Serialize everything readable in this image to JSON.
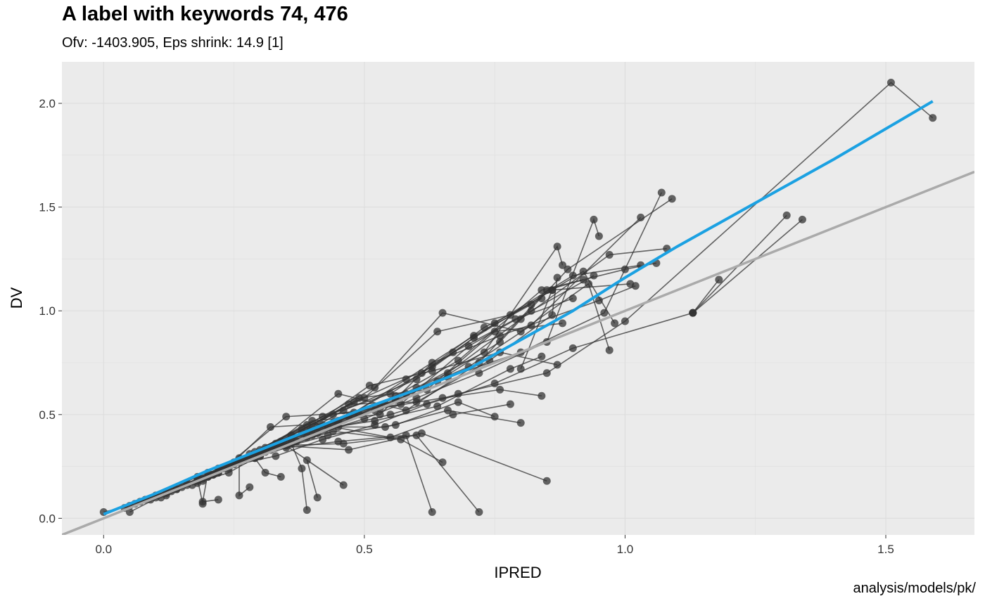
{
  "chart_data": {
    "type": "scatter",
    "title": "A label with keywords 74, 476",
    "subtitle": "Ofv: -1403.905, Eps shrink: 14.9 [1]",
    "caption": "analysis/models/pk/",
    "xlabel": "IPRED",
    "ylabel": "DV",
    "xlim": [
      -0.08,
      1.67
    ],
    "ylim": [
      -0.08,
      2.2
    ],
    "xticks": [
      0.0,
      0.5,
      1.0,
      1.5
    ],
    "xtick_labels": [
      "0.0",
      "0.5",
      "1.0",
      "1.5"
    ],
    "yticks": [
      0.0,
      0.5,
      1.0,
      1.5,
      2.0
    ],
    "ytick_labels": [
      "0.0",
      "0.5",
      "1.0",
      "1.5",
      "2.0"
    ],
    "grid": true,
    "legend": "none",
    "colors": {
      "panel": "#EBEBEB",
      "grid": "#DEDEDE",
      "points": "#333333",
      "smooth": "#1BA1E2",
      "identity": "#AAAAAA"
    },
    "identity_line": {
      "slope": 1,
      "intercept": 0
    },
    "smooth_line": [
      [
        0.0,
        0.02
      ],
      [
        0.1,
        0.12
      ],
      [
        0.2,
        0.23
      ],
      [
        0.3,
        0.33
      ],
      [
        0.4,
        0.43
      ],
      [
        0.5,
        0.53
      ],
      [
        0.6,
        0.62
      ],
      [
        0.7,
        0.72
      ],
      [
        0.8,
        0.86
      ],
      [
        0.9,
        1.0
      ],
      [
        1.0,
        1.16
      ],
      [
        1.1,
        1.31
      ],
      [
        1.2,
        1.45
      ],
      [
        1.3,
        1.59
      ],
      [
        1.4,
        1.73
      ],
      [
        1.59,
        2.01
      ]
    ],
    "series": [
      {
        "points": [
          [
            0.0,
            0.03
          ],
          [
            0.05,
            0.06
          ],
          [
            0.1,
            0.11
          ],
          [
            0.18,
            0.2
          ],
          [
            0.25,
            0.26
          ],
          [
            0.35,
            0.34
          ],
          [
            0.45,
            0.44
          ],
          [
            0.55,
            0.5
          ],
          [
            0.68,
            0.6
          ],
          [
            0.85,
            0.7
          ],
          [
            1.0,
            0.95
          ],
          [
            1.51,
            2.1
          ],
          [
            1.59,
            1.93
          ]
        ]
      },
      {
        "points": [
          [
            0.05,
            0.03
          ],
          [
            0.12,
            0.12
          ],
          [
            0.22,
            0.24
          ],
          [
            0.33,
            0.3
          ],
          [
            0.42,
            0.38
          ],
          [
            0.52,
            0.45
          ],
          [
            0.62,
            0.55
          ],
          [
            0.75,
            0.65
          ],
          [
            0.9,
            0.82
          ],
          [
            1.13,
            0.99
          ],
          [
            1.31,
            1.46
          ]
        ]
      },
      {
        "points": [
          [
            0.04,
            0.05
          ],
          [
            0.11,
            0.1
          ],
          [
            0.2,
            0.2
          ],
          [
            0.3,
            0.3
          ],
          [
            0.4,
            0.4
          ],
          [
            0.5,
            0.48
          ],
          [
            0.6,
            0.58
          ],
          [
            0.72,
            0.7
          ],
          [
            0.85,
            0.85
          ],
          [
            0.94,
            1.44
          ],
          [
            0.95,
            1.36
          ]
        ]
      },
      {
        "points": [
          [
            0.06,
            0.07
          ],
          [
            0.14,
            0.14
          ],
          [
            0.24,
            0.22
          ],
          [
            0.34,
            0.36
          ],
          [
            0.44,
            0.46
          ],
          [
            0.56,
            0.57
          ],
          [
            0.66,
            0.68
          ],
          [
            0.8,
            0.8
          ],
          [
            0.96,
            0.99
          ],
          [
            1.07,
            1.57
          ]
        ]
      },
      {
        "points": [
          [
            0.07,
            0.08
          ],
          [
            0.16,
            0.17
          ],
          [
            0.27,
            0.28
          ],
          [
            0.37,
            0.37
          ],
          [
            0.47,
            0.49
          ],
          [
            0.58,
            0.6
          ],
          [
            0.7,
            0.73
          ],
          [
            0.82,
            0.93
          ],
          [
            1.03,
            1.45
          ]
        ]
      },
      {
        "points": [
          [
            0.08,
            0.09
          ],
          [
            0.18,
            0.18
          ],
          [
            0.29,
            0.29
          ],
          [
            0.39,
            0.39
          ],
          [
            0.49,
            0.5
          ],
          [
            0.6,
            0.63
          ],
          [
            0.73,
            0.8
          ],
          [
            0.87,
            1.31
          ],
          [
            0.88,
            1.22
          ]
        ]
      },
      {
        "points": [
          [
            0.09,
            0.09
          ],
          [
            0.19,
            0.19
          ],
          [
            0.3,
            0.3
          ],
          [
            0.41,
            0.41
          ],
          [
            0.52,
            0.52
          ],
          [
            0.64,
            0.66
          ],
          [
            0.76,
            0.85
          ],
          [
            0.89,
            1.2
          ],
          [
            1.09,
            1.54
          ]
        ]
      },
      {
        "points": [
          [
            0.1,
            0.1
          ],
          [
            0.21,
            0.21
          ],
          [
            0.32,
            0.33
          ],
          [
            0.43,
            0.44
          ],
          [
            0.54,
            0.55
          ],
          [
            0.66,
            0.7
          ],
          [
            0.8,
            0.96
          ],
          [
            0.97,
            1.27
          ],
          [
            1.08,
            1.3
          ]
        ]
      },
      {
        "points": [
          [
            0.12,
            0.11
          ],
          [
            0.22,
            0.22
          ],
          [
            0.33,
            0.34
          ],
          [
            0.45,
            0.47
          ],
          [
            0.56,
            0.59
          ],
          [
            0.68,
            0.76
          ],
          [
            0.84,
            1.1
          ],
          [
            1.0,
            1.2
          ],
          [
            1.06,
            1.23
          ]
        ]
      },
      {
        "points": [
          [
            0.13,
            0.13
          ],
          [
            0.24,
            0.24
          ],
          [
            0.35,
            0.36
          ],
          [
            0.46,
            0.52
          ],
          [
            0.6,
            0.67
          ],
          [
            0.71,
            0.87
          ],
          [
            0.86,
            1.1
          ],
          [
            1.01,
            1.13
          ]
        ]
      },
      {
        "points": [
          [
            0.14,
            0.14
          ],
          [
            0.25,
            0.27
          ],
          [
            0.36,
            0.4
          ],
          [
            0.48,
            0.56
          ],
          [
            0.63,
            0.73
          ],
          [
            0.75,
            0.94
          ],
          [
            0.9,
            1.17
          ],
          [
            1.03,
            1.22
          ]
        ]
      },
      {
        "points": [
          [
            0.15,
            0.15
          ],
          [
            0.26,
            0.29
          ],
          [
            0.38,
            0.43
          ],
          [
            0.5,
            0.58
          ],
          [
            0.64,
            0.9
          ],
          [
            0.78,
            0.98
          ],
          [
            0.92,
            1.19
          ],
          [
            0.98,
            0.94
          ]
        ]
      },
      {
        "points": [
          [
            0.16,
            0.16
          ],
          [
            0.28,
            0.31
          ],
          [
            0.39,
            0.45
          ],
          [
            0.52,
            0.63
          ],
          [
            0.65,
            0.99
          ],
          [
            0.8,
            0.9
          ],
          [
            0.93,
            1.13
          ],
          [
            0.97,
            0.81
          ]
        ]
      },
      {
        "points": [
          [
            0.17,
            0.16
          ],
          [
            0.29,
            0.32
          ],
          [
            0.4,
            0.47
          ],
          [
            0.53,
            0.5
          ],
          [
            0.63,
            0.75
          ],
          [
            0.76,
            0.88
          ],
          [
            0.95,
            1.05
          ],
          [
            1.02,
            1.12
          ]
        ]
      },
      {
        "points": [
          [
            0.18,
            0.17
          ],
          [
            0.3,
            0.33
          ],
          [
            0.42,
            0.49
          ],
          [
            0.55,
            0.6
          ],
          [
            0.67,
            0.8
          ],
          [
            0.79,
            0.96
          ],
          [
            0.9,
            1.06
          ]
        ]
      },
      {
        "points": [
          [
            0.19,
            0.18
          ],
          [
            0.31,
            0.34
          ],
          [
            0.44,
            0.5
          ],
          [
            0.57,
            0.55
          ],
          [
            0.7,
            0.83
          ],
          [
            0.82,
            1.0
          ],
          [
            0.94,
            1.17
          ]
        ]
      },
      {
        "points": [
          [
            0.2,
            0.2
          ],
          [
            0.33,
            0.36
          ],
          [
            0.45,
            0.6
          ],
          [
            0.58,
            0.52
          ],
          [
            0.72,
            0.75
          ],
          [
            0.85,
            1.1
          ],
          [
            0.92,
            1.15
          ]
        ]
      },
      {
        "points": [
          [
            0.21,
            0.21
          ],
          [
            0.34,
            0.37
          ],
          [
            0.47,
            0.55
          ],
          [
            0.6,
            0.56
          ],
          [
            0.74,
            0.76
          ],
          [
            0.86,
            0.98
          ],
          [
            0.87,
            1.16
          ]
        ]
      },
      {
        "points": [
          [
            0.22,
            0.22
          ],
          [
            0.35,
            0.49
          ],
          [
            0.48,
            0.51
          ],
          [
            0.61,
            0.7
          ],
          [
            0.73,
            0.92
          ],
          [
            0.84,
            1.06
          ]
        ]
      },
      {
        "points": [
          [
            0.23,
            0.24
          ],
          [
            0.36,
            0.38
          ],
          [
            0.49,
            0.58
          ],
          [
            0.62,
            0.62
          ],
          [
            0.75,
            0.9
          ],
          [
            0.88,
            0.94
          ]
        ]
      },
      {
        "points": [
          [
            0.24,
            0.25
          ],
          [
            0.32,
            0.44
          ],
          [
            0.45,
            0.46
          ],
          [
            0.58,
            0.67
          ],
          [
            0.71,
            0.88
          ],
          [
            0.82,
            1.03
          ]
        ]
      },
      {
        "points": [
          [
            0.25,
            0.26
          ],
          [
            0.38,
            0.41
          ],
          [
            0.51,
            0.64
          ],
          [
            0.63,
            0.71
          ],
          [
            0.76,
            0.8
          ],
          [
            0.87,
            0.74
          ]
        ]
      },
      {
        "points": [
          [
            0.26,
            0.27
          ],
          [
            0.39,
            0.42
          ],
          [
            0.52,
            0.47
          ],
          [
            0.64,
            0.54
          ],
          [
            0.78,
            0.72
          ],
          [
            0.84,
            0.78
          ]
        ]
      },
      {
        "points": [
          [
            0.27,
            0.28
          ],
          [
            0.4,
            0.43
          ],
          [
            0.53,
            0.53
          ],
          [
            0.65,
            0.58
          ],
          [
            0.76,
            0.62
          ],
          [
            0.84,
            0.59
          ]
        ]
      },
      {
        "points": [
          [
            0.28,
            0.29
          ],
          [
            0.41,
            0.44
          ],
          [
            0.54,
            0.44
          ],
          [
            0.66,
            0.52
          ],
          [
            0.8,
            0.46
          ]
        ]
      },
      {
        "points": [
          [
            0.29,
            0.3
          ],
          [
            0.42,
            0.45
          ],
          [
            0.55,
            0.39
          ],
          [
            0.67,
            0.5
          ],
          [
            0.78,
            0.55
          ]
        ]
      },
      {
        "points": [
          [
            0.3,
            0.31
          ],
          [
            0.43,
            0.4
          ],
          [
            0.56,
            0.45
          ],
          [
            0.68,
            0.56
          ],
          [
            0.75,
            0.49
          ]
        ]
      },
      {
        "points": [
          [
            0.31,
            0.32
          ],
          [
            0.44,
            0.42
          ],
          [
            0.57,
            0.38
          ],
          [
            0.65,
            0.27
          ]
        ]
      },
      {
        "points": [
          [
            0.32,
            0.33
          ],
          [
            0.45,
            0.37
          ],
          [
            0.58,
            0.4
          ],
          [
            0.63,
            0.03
          ]
        ]
      },
      {
        "points": [
          [
            0.33,
            0.35
          ],
          [
            0.46,
            0.36
          ],
          [
            0.6,
            0.4
          ],
          [
            0.72,
            0.03
          ]
        ]
      },
      {
        "points": [
          [
            0.34,
            0.35
          ],
          [
            0.47,
            0.33
          ],
          [
            0.61,
            0.41
          ],
          [
            0.85,
            0.18
          ]
        ]
      },
      {
        "points": [
          [
            0.35,
            0.35
          ],
          [
            0.46,
            0.16
          ],
          [
            0.39,
            0.28
          ],
          [
            0.41,
            0.1
          ]
        ]
      },
      {
        "points": [
          [
            0.36,
            0.36
          ],
          [
            0.38,
            0.24
          ],
          [
            0.39,
            0.04
          ]
        ]
      },
      {
        "points": [
          [
            0.2,
            0.22
          ],
          [
            0.19,
            0.08
          ],
          [
            0.22,
            0.09
          ]
        ]
      },
      {
        "points": [
          [
            0.18,
            0.19
          ],
          [
            0.19,
            0.07
          ]
        ]
      },
      {
        "points": [
          [
            0.26,
            0.27
          ],
          [
            0.26,
            0.11
          ],
          [
            0.28,
            0.15
          ]
        ]
      },
      {
        "points": [
          [
            0.29,
            0.29
          ],
          [
            0.31,
            0.22
          ],
          [
            0.34,
            0.2
          ]
        ]
      },
      {
        "points": [
          [
            1.18,
            1.15
          ],
          [
            1.13,
            0.99
          ]
        ]
      },
      {
        "points": [
          [
            1.34,
            1.44
          ],
          [
            1.13,
            0.99
          ]
        ]
      },
      {
        "points": [
          [
            0.86,
            1.1
          ],
          [
            0.8,
            0.72
          ]
        ]
      }
    ]
  }
}
